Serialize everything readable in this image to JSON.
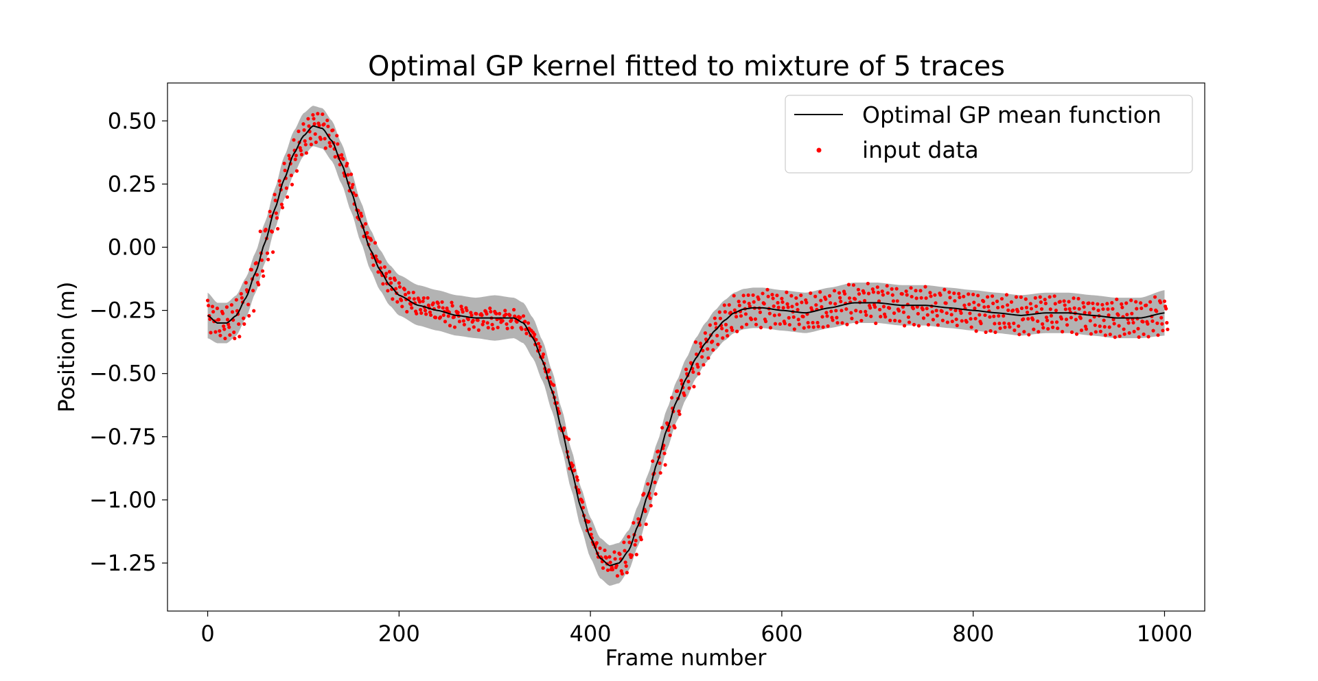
{
  "chart_data": {
    "type": "line",
    "title": "Optimal GP kernel fitted to mixture of 5 traces",
    "xlabel": "Frame number",
    "ylabel": "Position (m)",
    "xlim": [
      -42,
      1042
    ],
    "ylim": [
      -1.44,
      0.65
    ],
    "xticks": [
      0,
      200,
      400,
      600,
      800,
      1000
    ],
    "xtick_labels": [
      "0",
      "200",
      "400",
      "600",
      "800",
      "1000"
    ],
    "yticks": [
      0.5,
      0.25,
      0.0,
      -0.25,
      -0.5,
      -0.75,
      -1.0,
      -1.25
    ],
    "ytick_labels": [
      "0.50",
      "0.25",
      "0.00",
      "−0.25",
      "−0.50",
      "−0.75",
      "−1.00",
      "−1.25"
    ],
    "grid": false,
    "legend_position": "top-right",
    "legend": [
      {
        "label": "Optimal GP mean function",
        "marker": "line",
        "color": "#000000"
      },
      {
        "label": "input data",
        "marker": "dot",
        "color": "#ff0000"
      }
    ],
    "band_color": "#b3b3b3",
    "mean_function": {
      "name": "Optimal GP mean function",
      "color": "#000000",
      "x": [
        0,
        10,
        20,
        30,
        40,
        50,
        60,
        70,
        80,
        90,
        100,
        110,
        120,
        130,
        140,
        150,
        160,
        170,
        180,
        190,
        200,
        220,
        240,
        260,
        280,
        300,
        320,
        330,
        340,
        350,
        360,
        370,
        380,
        390,
        400,
        410,
        420,
        430,
        440,
        450,
        460,
        470,
        480,
        490,
        500,
        510,
        520,
        530,
        540,
        550,
        560,
        570,
        580,
        600,
        625,
        650,
        675,
        700,
        725,
        750,
        775,
        800,
        825,
        850,
        875,
        900,
        925,
        950,
        975,
        1000
      ],
      "y": [
        -0.27,
        -0.3,
        -0.3,
        -0.27,
        -0.2,
        -0.1,
        0.02,
        0.15,
        0.27,
        0.37,
        0.44,
        0.48,
        0.47,
        0.42,
        0.33,
        0.22,
        0.1,
        -0.01,
        -0.09,
        -0.15,
        -0.19,
        -0.23,
        -0.25,
        -0.27,
        -0.28,
        -0.28,
        -0.28,
        -0.3,
        -0.36,
        -0.45,
        -0.57,
        -0.72,
        -0.88,
        -1.03,
        -1.15,
        -1.23,
        -1.26,
        -1.25,
        -1.2,
        -1.1,
        -0.98,
        -0.85,
        -0.72,
        -0.61,
        -0.52,
        -0.44,
        -0.38,
        -0.33,
        -0.29,
        -0.26,
        -0.245,
        -0.24,
        -0.24,
        -0.25,
        -0.26,
        -0.24,
        -0.22,
        -0.22,
        -0.23,
        -0.23,
        -0.24,
        -0.25,
        -0.26,
        -0.27,
        -0.26,
        -0.26,
        -0.27,
        -0.28,
        -0.28,
        -0.26
      ]
    },
    "confidence_band": {
      "x": [
        0,
        10,
        20,
        30,
        40,
        50,
        60,
        70,
        80,
        90,
        100,
        110,
        120,
        130,
        140,
        150,
        160,
        170,
        180,
        190,
        200,
        220,
        240,
        260,
        280,
        300,
        320,
        330,
        340,
        350,
        360,
        370,
        380,
        390,
        400,
        410,
        420,
        430,
        440,
        450,
        460,
        470,
        480,
        490,
        500,
        510,
        520,
        530,
        540,
        550,
        560,
        570,
        580,
        600,
        625,
        650,
        675,
        700,
        725,
        750,
        775,
        800,
        825,
        850,
        875,
        900,
        925,
        950,
        975,
        1000
      ],
      "upper": [
        -0.18,
        -0.22,
        -0.22,
        -0.19,
        -0.12,
        -0.02,
        0.1,
        0.23,
        0.36,
        0.46,
        0.53,
        0.56,
        0.55,
        0.5,
        0.41,
        0.3,
        0.18,
        0.07,
        -0.01,
        -0.07,
        -0.11,
        -0.15,
        -0.17,
        -0.19,
        -0.2,
        -0.19,
        -0.2,
        -0.22,
        -0.28,
        -0.37,
        -0.49,
        -0.64,
        -0.8,
        -0.95,
        -1.07,
        -1.15,
        -1.18,
        -1.17,
        -1.12,
        -1.02,
        -0.9,
        -0.77,
        -0.64,
        -0.53,
        -0.44,
        -0.36,
        -0.3,
        -0.25,
        -0.21,
        -0.18,
        -0.165,
        -0.16,
        -0.16,
        -0.17,
        -0.18,
        -0.16,
        -0.14,
        -0.14,
        -0.15,
        -0.15,
        -0.16,
        -0.17,
        -0.18,
        -0.19,
        -0.18,
        -0.18,
        -0.19,
        -0.2,
        -0.2,
        -0.17
      ],
      "lower": [
        -0.36,
        -0.38,
        -0.38,
        -0.35,
        -0.28,
        -0.18,
        -0.06,
        0.07,
        0.19,
        0.29,
        0.36,
        0.4,
        0.39,
        0.34,
        0.25,
        0.14,
        0.02,
        -0.09,
        -0.17,
        -0.23,
        -0.27,
        -0.31,
        -0.33,
        -0.35,
        -0.36,
        -0.37,
        -0.36,
        -0.38,
        -0.44,
        -0.53,
        -0.65,
        -0.8,
        -0.96,
        -1.11,
        -1.23,
        -1.31,
        -1.34,
        -1.33,
        -1.28,
        -1.18,
        -1.06,
        -0.93,
        -0.8,
        -0.69,
        -0.6,
        -0.52,
        -0.46,
        -0.41,
        -0.37,
        -0.34,
        -0.325,
        -0.32,
        -0.32,
        -0.33,
        -0.34,
        -0.32,
        -0.3,
        -0.3,
        -0.31,
        -0.31,
        -0.32,
        -0.33,
        -0.34,
        -0.35,
        -0.34,
        -0.34,
        -0.35,
        -0.36,
        -0.36,
        -0.35
      ]
    },
    "input_data": {
      "name": "input data",
      "color": "#ff0000",
      "traces": 5,
      "x_start": 0,
      "x_end": 1000,
      "x_step": 5,
      "trace_offsets": [
        0.06,
        0.03,
        0.0,
        -0.03,
        -0.065
      ]
    }
  }
}
